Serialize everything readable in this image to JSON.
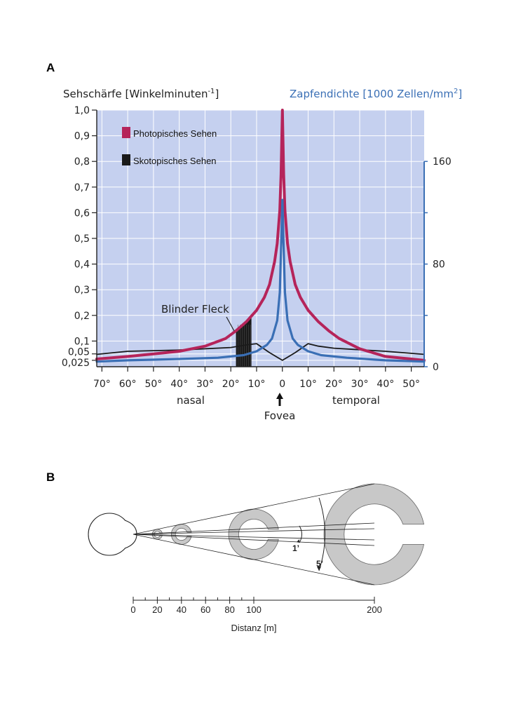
{
  "panel_a": {
    "letter": "A",
    "chart_data": {
      "type": "line",
      "left_axis_label": "Sehschärfe [Winkelminuten",
      "left_axis_label_sup": "-1",
      "left_axis_label_end": "]",
      "right_axis_label": "Zapfendichte [1000 Zellen/mm",
      "right_axis_label_sup": "2",
      "right_axis_label_end": "]",
      "left_ticks": [
        "1,0",
        "0,9",
        "0,8",
        "0,7",
        "0,6",
        "0,5",
        "0,4",
        "0,3",
        "0,2",
        "0,1",
        "0,05",
        "0,025"
      ],
      "left_tick_values": [
        1.0,
        0.9,
        0.8,
        0.7,
        0.6,
        0.5,
        0.4,
        0.3,
        0.2,
        0.1,
        0.05,
        0.025
      ],
      "right_ticks": [
        "160",
        "80",
        "0"
      ],
      "right_tick_values": [
        160,
        80,
        0
      ],
      "ylim_left": [
        0,
        1.0
      ],
      "ylim_right": [
        0,
        200
      ],
      "x_ticks": [
        "70°",
        "60°",
        "50°",
        "40°",
        "30°",
        "20°",
        "10°",
        "0",
        "10°",
        "20°",
        "30°",
        "40°",
        "50°"
      ],
      "x_tick_values": [
        -70,
        -60,
        -50,
        -40,
        -30,
        -20,
        -10,
        0,
        10,
        20,
        30,
        40,
        50
      ],
      "xlim": [
        -72,
        55
      ],
      "x_side_labels": {
        "left": "nasal",
        "right": "temporal"
      },
      "fovea_label": "Fovea",
      "blind_spot_label": "Blinder Fleck",
      "blind_spot_range": [
        -18,
        -12
      ],
      "colors": {
        "background": "#c5d0ef",
        "photopic": "#b5245a",
        "cone_density": "#3a6fb5",
        "scotopic": "#1a1a1a",
        "left_axis": "#222222",
        "right_axis": "#3a6fb5"
      },
      "series": [
        {
          "name": "Photopisches Sehen",
          "axis": "left",
          "x": [
            -72,
            -60,
            -50,
            -40,
            -30,
            -22,
            -18,
            -14,
            -10,
            -7,
            -5,
            -3,
            -2,
            -1,
            -0.5,
            -0.2,
            0,
            0.2,
            0.5,
            1,
            2,
            3,
            5,
            7,
            10,
            14,
            18,
            22,
            30,
            40,
            50,
            55
          ],
          "y": [
            0.03,
            0.04,
            0.05,
            0.06,
            0.08,
            0.11,
            0.14,
            0.175,
            0.22,
            0.27,
            0.32,
            0.41,
            0.48,
            0.61,
            0.75,
            0.9,
            1.0,
            0.9,
            0.75,
            0.61,
            0.48,
            0.41,
            0.32,
            0.27,
            0.22,
            0.175,
            0.14,
            0.11,
            0.07,
            0.04,
            0.03,
            0.025
          ]
        },
        {
          "name": "Zapfendichte",
          "axis": "right",
          "x": [
            -72,
            -60,
            -40,
            -25,
            -15,
            -10,
            -6,
            -4,
            -2,
            -1,
            -0.4,
            0,
            0.4,
            1,
            2,
            4,
            6,
            10,
            15,
            25,
            40,
            55
          ],
          "y": [
            4,
            5,
            6,
            7,
            9,
            12,
            17,
            22,
            36,
            58,
            100,
            130,
            100,
            58,
            36,
            22,
            17,
            12,
            9,
            7,
            5,
            4
          ]
        },
        {
          "name": "Skotopisches Sehen",
          "axis": "left",
          "x": [
            -72,
            -60,
            -40,
            -20,
            -14,
            -10,
            -5,
            0,
            5,
            10,
            14,
            20,
            40,
            55
          ],
          "y": [
            0.048,
            0.06,
            0.065,
            0.075,
            0.085,
            0.09,
            0.055,
            0.025,
            0.055,
            0.09,
            0.08,
            0.072,
            0.06,
            0.048
          ]
        }
      ],
      "legend": [
        {
          "label": "Photopisches Sehen",
          "color": "#b5245a"
        },
        {
          "label": "Skotopisches Sehen",
          "color": "#1a1a1a"
        }
      ]
    }
  },
  "panel_b": {
    "letter": "B",
    "chart_data": {
      "type": "diagram",
      "axis_label": "Distanz [m]",
      "scale_ticks": [
        "0",
        "20",
        "40",
        "60",
        "80",
        "100",
        "200"
      ],
      "scale_tick_values": [
        0,
        20,
        40,
        60,
        80,
        100,
        200
      ],
      "minor_tick_values": [
        10,
        30,
        50,
        70,
        90
      ],
      "angle_labels": [
        "1’",
        "5’"
      ],
      "optotype_distances": [
        20,
        40,
        100,
        200
      ],
      "colors": {
        "optotype": "#c8c8c8"
      }
    }
  }
}
